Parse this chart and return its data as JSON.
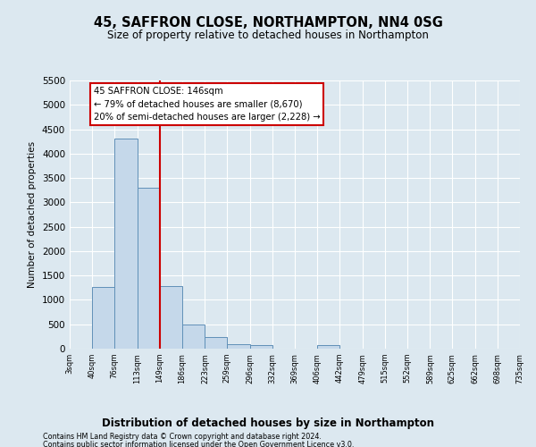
{
  "title": "45, SAFFRON CLOSE, NORTHAMPTON, NN4 0SG",
  "subtitle": "Size of property relative to detached houses in Northampton",
  "xlabel": "Distribution of detached houses by size in Northampton",
  "ylabel": "Number of detached properties",
  "footnote1": "Contains HM Land Registry data © Crown copyright and database right 2024.",
  "footnote2": "Contains public sector information licensed under the Open Government Licence v3.0.",
  "bin_labels": [
    "3sqm",
    "40sqm",
    "76sqm",
    "113sqm",
    "149sqm",
    "186sqm",
    "223sqm",
    "259sqm",
    "296sqm",
    "332sqm",
    "369sqm",
    "406sqm",
    "442sqm",
    "479sqm",
    "515sqm",
    "552sqm",
    "589sqm",
    "625sqm",
    "662sqm",
    "698sqm",
    "735sqm"
  ],
  "bar_values": [
    0,
    1270,
    4300,
    3300,
    1290,
    490,
    240,
    95,
    65,
    0,
    0,
    65,
    0,
    0,
    0,
    0,
    0,
    0,
    0,
    0
  ],
  "bin_edges": [
    3,
    40,
    76,
    113,
    149,
    186,
    223,
    259,
    296,
    332,
    369,
    406,
    442,
    479,
    515,
    552,
    589,
    625,
    662,
    698,
    735
  ],
  "vline_x": 149,
  "ylim": [
    0,
    5500
  ],
  "yticks": [
    0,
    500,
    1000,
    1500,
    2000,
    2500,
    3000,
    3500,
    4000,
    4500,
    5000,
    5500
  ],
  "bar_color": "#c5d8ea",
  "bar_edge_color": "#6090b8",
  "vline_color": "#cc0000",
  "annotation_title": "45 SAFFRON CLOSE: 146sqm",
  "annotation_line1": "← 79% of detached houses are smaller (8,670)",
  "annotation_line2": "20% of semi-detached houses are larger (2,228) →",
  "annotation_box_color": "#ffffff",
  "annotation_box_edge": "#cc0000",
  "background_color": "#dce8f0",
  "plot_bg_color": "#dce8f0",
  "grid_color": "#ffffff"
}
